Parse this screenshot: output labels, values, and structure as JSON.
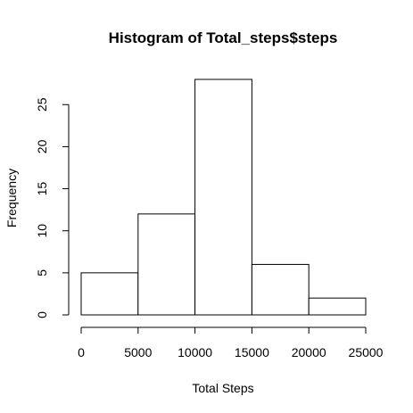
{
  "chart_data": {
    "type": "bar",
    "title": "Histogram of Total_steps$steps",
    "xlabel": "Total Steps",
    "ylabel": "Frequency",
    "bins": [
      {
        "start": 0,
        "end": 5000,
        "value": 5
      },
      {
        "start": 5000,
        "end": 10000,
        "value": 12
      },
      {
        "start": 10000,
        "end": 15000,
        "value": 28
      },
      {
        "start": 15000,
        "end": 20000,
        "value": 6
      },
      {
        "start": 20000,
        "end": 25000,
        "value": 2
      }
    ],
    "xlim": [
      0,
      25000
    ],
    "ylim": [
      0,
      28
    ],
    "x_ticks": [
      0,
      5000,
      10000,
      15000,
      20000,
      25000
    ],
    "y_ticks": [
      0,
      5,
      10,
      15,
      20,
      25
    ],
    "grid": false,
    "colors": {
      "bar_fill": "#ffffff",
      "bar_stroke": "#000000",
      "text": "#000000",
      "background": "#ffffff"
    }
  }
}
